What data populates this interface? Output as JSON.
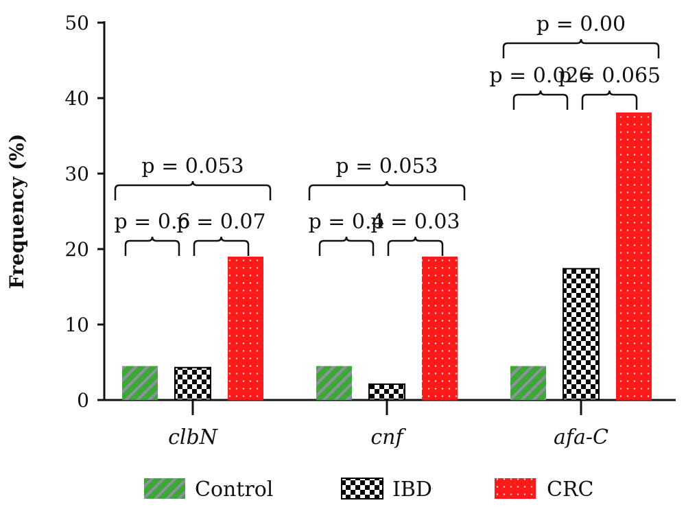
{
  "chart_data": {
    "type": "bar",
    "ylabel": "Frequency (%)",
    "xlabel": "",
    "ylim": [
      0,
      50
    ],
    "yticks": [
      0,
      10,
      20,
      30,
      40,
      50
    ],
    "categories": [
      "clbN",
      "cnf",
      "afa-C"
    ],
    "series": [
      {
        "name": "Control",
        "values": [
          4.5,
          4.5,
          4.5
        ],
        "color": "#3aaa35",
        "pattern": "diagonal-hatch"
      },
      {
        "name": "IBD",
        "values": [
          4.3,
          2.1,
          17.4
        ],
        "color": "#000000",
        "pattern": "checker"
      },
      {
        "name": "CRC",
        "values": [
          19.0,
          19.0,
          38.1
        ],
        "color": "#ff1a1a",
        "pattern": "dots"
      }
    ],
    "legend": {
      "placement": "bottom",
      "entries": [
        "Control",
        "IBD",
        "CRC"
      ]
    },
    "annotations": [
      {
        "category": 0,
        "from": 0,
        "to": 1,
        "level": 1,
        "text": "p = 0.6"
      },
      {
        "category": 0,
        "from": 1,
        "to": 2,
        "level": 1,
        "text": "p = 0.07"
      },
      {
        "category": 0,
        "from": 0,
        "to": 2,
        "level": 2,
        "text": "p = 0.053"
      },
      {
        "category": 1,
        "from": 0,
        "to": 1,
        "level": 1,
        "text": "p = 0.4"
      },
      {
        "category": 1,
        "from": 1,
        "to": 2,
        "level": 1,
        "text": "p = 0.03"
      },
      {
        "category": 1,
        "from": 0,
        "to": 2,
        "level": 2,
        "text": "p = 0.053"
      },
      {
        "category": 2,
        "from": 0,
        "to": 1,
        "level": 1,
        "text": "p = 0.026"
      },
      {
        "category": 2,
        "from": 1,
        "to": 2,
        "level": 1,
        "text": "p = 0.065"
      },
      {
        "category": 2,
        "from": 0,
        "to": 2,
        "level": 2,
        "text": "p = 0.00"
      }
    ]
  }
}
